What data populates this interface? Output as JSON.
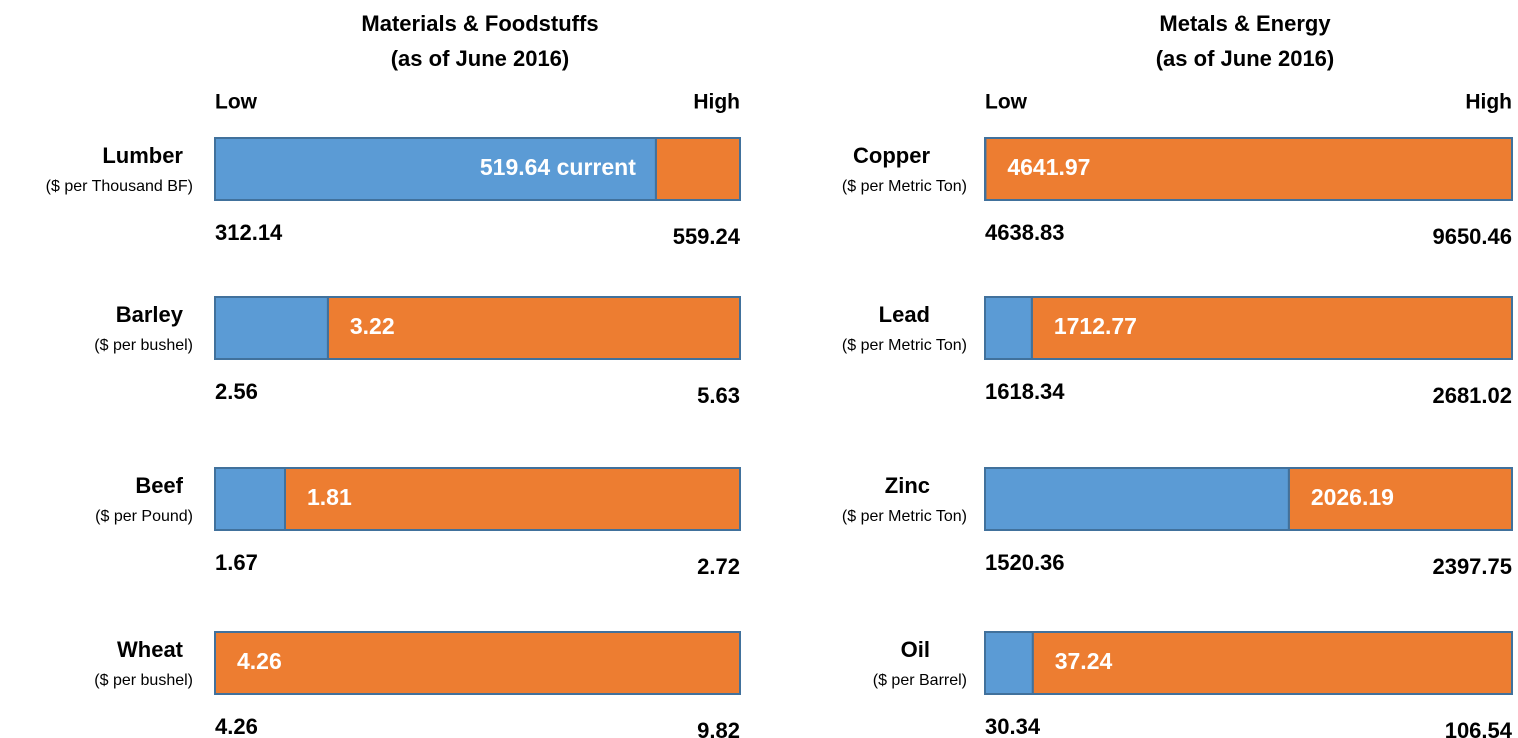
{
  "chart_data": [
    {
      "type": "range",
      "title": "Materials & Foodstuffs",
      "subtitle": "(as of June 2016)",
      "low_heading": "Low",
      "high_heading": "High",
      "categories": [
        "Lumber",
        "Barley",
        "Beef",
        "Wheat"
      ],
      "units": [
        "($ per Thousand BF)",
        "($ per bushel)",
        "($ per Pound)",
        "($ per bushel)"
      ],
      "low": [
        312.14,
        2.56,
        1.67,
        4.26
      ],
      "high": [
        559.24,
        5.63,
        2.72,
        9.82
      ],
      "values": [
        519.64,
        3.22,
        1.81,
        4.26
      ],
      "value_labels": [
        "519.64 current",
        "3.22",
        "1.81",
        "4.26"
      ],
      "colors": {
        "below": "#5b9bd5",
        "above": "#ed7d31",
        "edge": "#41719c"
      }
    },
    {
      "type": "range",
      "title": "Metals & Energy",
      "subtitle": "(as of June 2016)",
      "low_heading": "Low",
      "high_heading": "High",
      "categories": [
        "Copper",
        "Lead",
        "Zinc",
        "Oil"
      ],
      "units": [
        "($ per Metric Ton)",
        "($ per Metric Ton)",
        "($ per Metric Ton)",
        "($ per Barrel)"
      ],
      "low": [
        4638.83,
        1618.34,
        1520.36,
        30.34
      ],
      "high": [
        9650.46,
        2681.02,
        2397.75,
        106.54
      ],
      "values": [
        4641.97,
        1712.77,
        2026.19,
        37.24
      ],
      "value_labels": [
        "4641.97",
        "1712.77",
        "2026.19",
        "37.24"
      ],
      "colors": {
        "below": "#5b9bd5",
        "above": "#ed7d31",
        "edge": "#41719c"
      }
    }
  ]
}
